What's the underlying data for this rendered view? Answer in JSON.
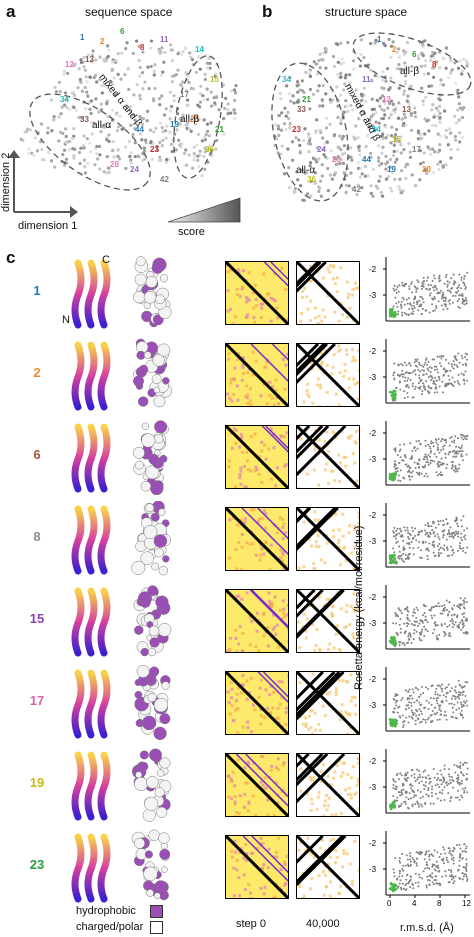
{
  "panels": {
    "a": {
      "letter": "a",
      "title": "sequence space",
      "regions": [
        "mixed α and β",
        "all-α",
        "all-β"
      ],
      "axis_x": "dimension 1",
      "axis_y": "dimension 2",
      "score_label": "score"
    },
    "b": {
      "letter": "b",
      "title": "structure space",
      "regions": [
        "all-β",
        "mixed α and β",
        "all-α"
      ]
    },
    "c": {
      "letter": "c"
    }
  },
  "map_labels": [
    "1",
    "2",
    "6",
    "8",
    "11",
    "12",
    "13",
    "14",
    "15",
    "17",
    "19",
    "20",
    "21",
    "23",
    "24",
    "28",
    "33",
    "34",
    "36",
    "42",
    "44"
  ],
  "map_label_colors": [
    "#1f77b4",
    "#ff7f0e",
    "#2ca02c",
    "#d62728",
    "#9467bd",
    "#e377c2",
    "#8c564b",
    "#17becf",
    "#bcbd22",
    "#7f7f7f"
  ],
  "terminus_labels": {
    "n": "N",
    "c": "C"
  },
  "designs": [
    {
      "id": "1",
      "color": "#1a7fbf"
    },
    {
      "id": "2",
      "color": "#f08a30"
    },
    {
      "id": "6",
      "color": "#a9583a"
    },
    {
      "id": "8",
      "color": "#8a8a8a"
    },
    {
      "id": "15",
      "color": "#9040b8"
    },
    {
      "id": "17",
      "color": "#e45fb0"
    },
    {
      "id": "19",
      "color": "#c8b81a"
    },
    {
      "id": "23",
      "color": "#2a9a3a"
    }
  ],
  "scatter": {
    "y_ticks": [
      "-2",
      "-3"
    ],
    "x_ticks": [
      "0",
      "4",
      "8",
      "12"
    ],
    "ylabel": "Rosetta energy (kcal/mol/residue)",
    "xlabel": "r.m.s.d. (Å)",
    "colors": {
      "decoy": "#808080",
      "design": "#4cb84a"
    }
  },
  "matrix_labels": {
    "step0": "step 0",
    "final": "40,000"
  },
  "legend": {
    "hydrophobic": "hydrophobic",
    "polar": "charged/polar",
    "colors": {
      "hydrophobic": "#9b4fb6",
      "polar": "#ffffff"
    }
  }
}
